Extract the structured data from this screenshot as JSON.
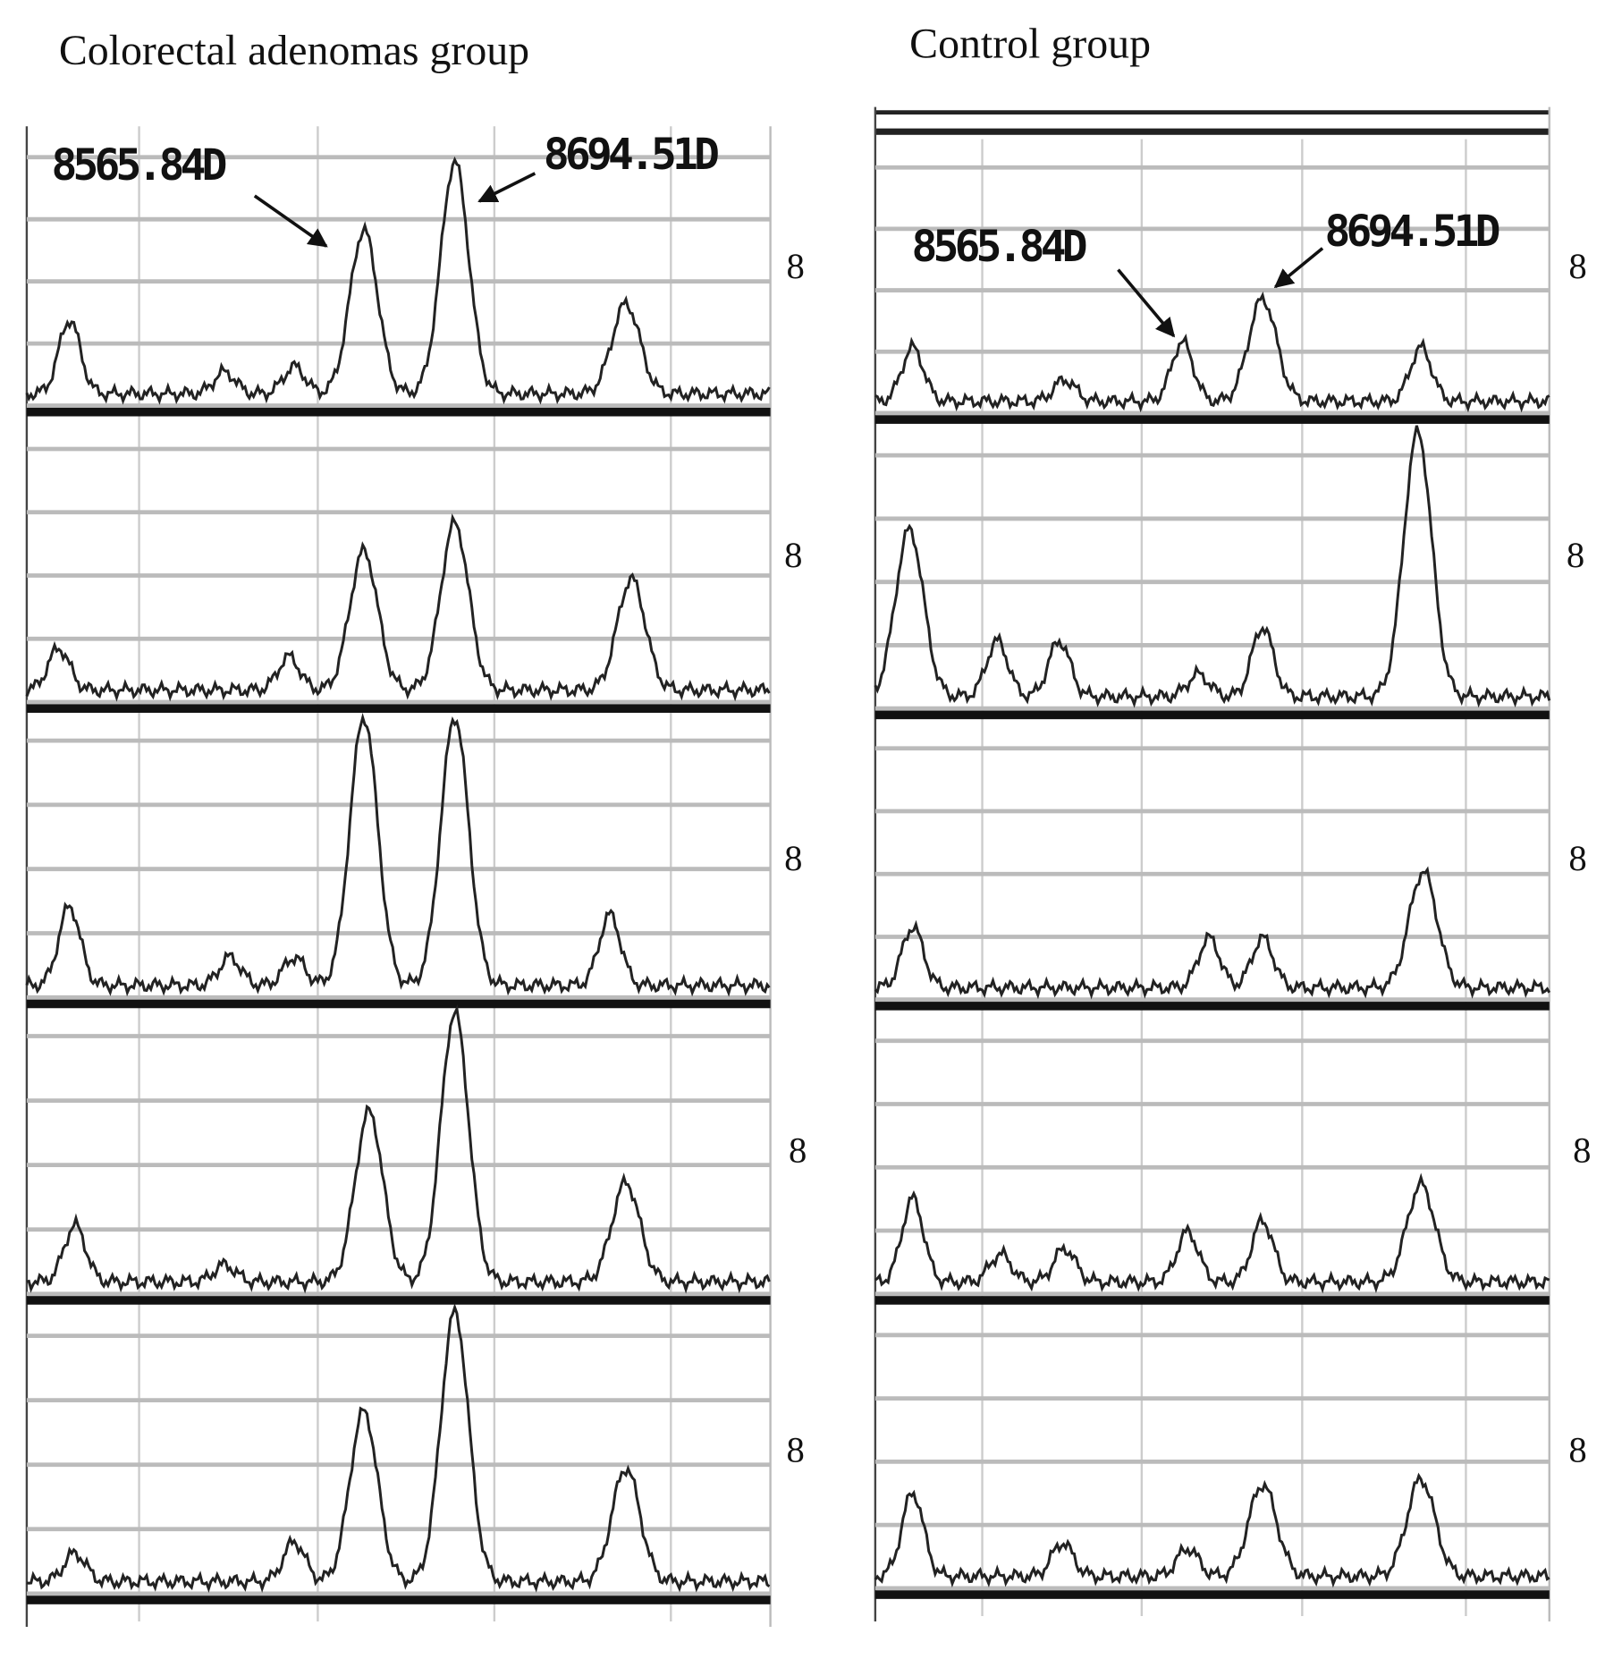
{
  "left_panel": {
    "title": "Colorectal adenomas group",
    "peak_labels": [
      "8565.84D",
      "8694.51D"
    ],
    "side_labels": [
      "8",
      "8",
      "8",
      "8",
      "8"
    ]
  },
  "right_panel": {
    "title": "Control group",
    "peak_labels": [
      "8565.84D",
      "8694.51D"
    ],
    "side_labels": [
      "8",
      "8",
      "8",
      "8",
      "8"
    ]
  }
}
